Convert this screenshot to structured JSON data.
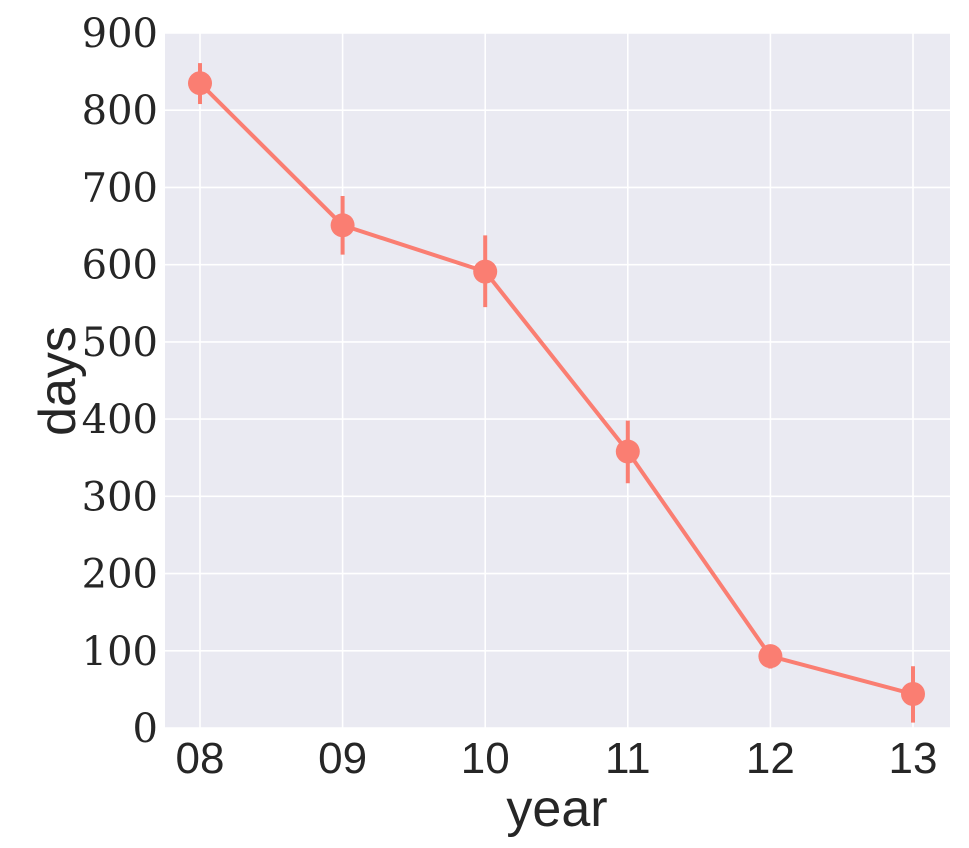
{
  "chart_data": {
    "type": "line",
    "title": "",
    "xlabel": "year",
    "ylabel": "days",
    "categories": [
      "08",
      "09",
      "10",
      "11",
      "12",
      "13"
    ],
    "series": [
      {
        "values": [
          835,
          651,
          591,
          358,
          93,
          44
        ],
        "error_low": [
          808,
          613,
          545,
          317,
          77,
          7
        ],
        "error_high": [
          861,
          689,
          638,
          398,
          103,
          80
        ],
        "color": "#fa7e72"
      }
    ],
    "ylim": [
      0,
      900
    ],
    "yticks": [
      "0",
      "100",
      "200",
      "300",
      "400",
      "500",
      "600",
      "700",
      "800",
      "900"
    ],
    "grid": true,
    "plot_background": "#eaeaf2",
    "grid_color": "#ffffff"
  }
}
